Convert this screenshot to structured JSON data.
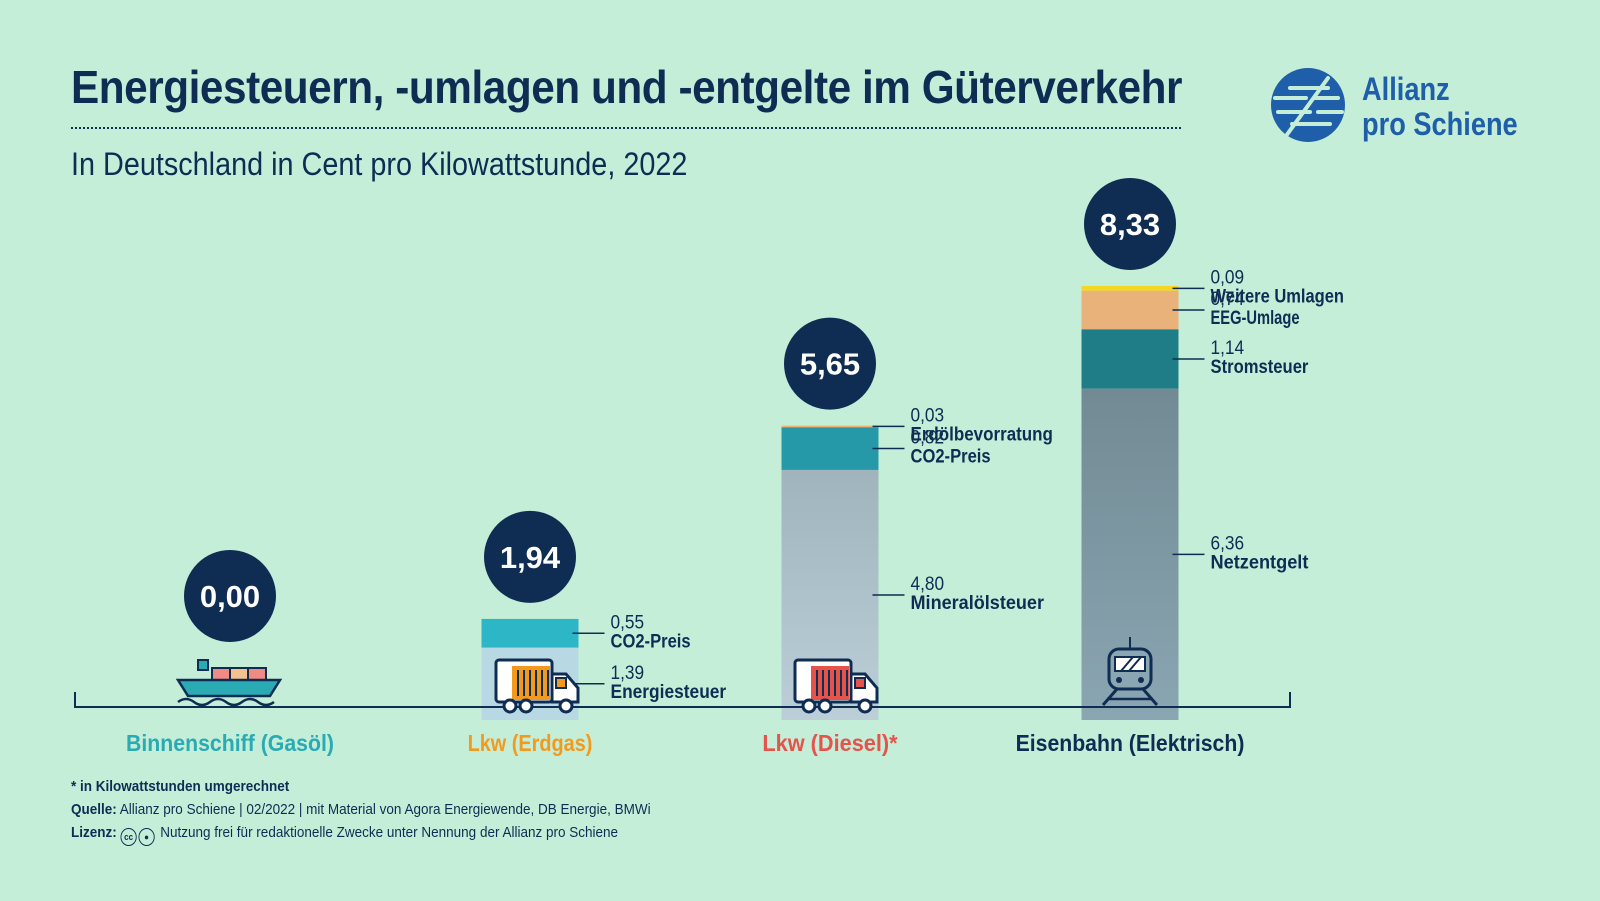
{
  "header": {
    "title": "Energiesteuern, -umlagen und -entgelte im Güterverkehr",
    "subtitle": "In Deutschland in Cent pro Kilowattstunde, 2022"
  },
  "logo": {
    "line1": "Allianz",
    "line2": "pro Schiene",
    "color": "#1f5ea8"
  },
  "chart_data": {
    "type": "bar",
    "stacked": true,
    "title": "Energiesteuern, -umlagen und -entgelte im Güterverkehr",
    "subtitle": "In Deutschland in Cent pro Kilowattstunde, 2022",
    "categories": [
      "Binnenschiff (Gasöl)",
      "Lkw (Erdgas)",
      "Lkw (Diesel)*",
      "Eisenbahn (Elektrisch)"
    ],
    "category_colors": [
      "#2aaab3",
      "#f29a1e",
      "#e5544b",
      "#0f2c52"
    ],
    "totals": [
      "0,00",
      "1,94",
      "5,65",
      "8,33"
    ],
    "total_values": [
      0.0,
      1.94,
      5.65,
      8.33
    ],
    "ylim": [
      0,
      8.33
    ],
    "icons": [
      "ship-icon",
      "truck-icon",
      "truck-icon",
      "train-icon"
    ],
    "bars": [
      {
        "segments": []
      },
      {
        "segments": [
          {
            "name": "Energiesteuer",
            "value": 1.39,
            "label": "1,39",
            "color": "#b8d9e4"
          },
          {
            "name": "CO2-Preis",
            "value": 0.55,
            "label": "0,55",
            "color": "#2db6c5"
          }
        ]
      },
      {
        "segments": [
          {
            "name": "Mineralölsteuer",
            "value": 4.8,
            "label": "4,80",
            "color": "#a2b8c1"
          },
          {
            "name": "CO2-Preis",
            "value": 0.82,
            "label": "0,82",
            "color": "#2599a8"
          },
          {
            "name": "Erdölbevorratung",
            "value": 0.03,
            "label": "0,03",
            "color": "#f2b46a"
          }
        ]
      },
      {
        "segments": [
          {
            "name": "Netzentgelt",
            "value": 6.36,
            "label": "6,36",
            "color": "#7d96a0"
          },
          {
            "name": "Stromsteuer",
            "value": 1.14,
            "label": "1,14",
            "color": "#1f7d87"
          },
          {
            "name": "EEG-Umlage",
            "value": 0.74,
            "label": "0,74",
            "color": "#e8b27a"
          },
          {
            "name": "Weitere Umlagen",
            "value": 0.09,
            "label": "0,09",
            "color": "#f5d623"
          }
        ]
      }
    ]
  },
  "footer": {
    "note": "* in Kilowattstunden umgerechnet",
    "source_label": "Quelle:",
    "source_text": "Allianz pro Schiene | 02/2022 | mit Material von Agora Energiewende, DB Energie, BMWi",
    "license_label": "Lizenz:",
    "license_text": "Nutzung frei für redaktionelle Zwecke unter Nennung der Allianz pro Schiene"
  }
}
